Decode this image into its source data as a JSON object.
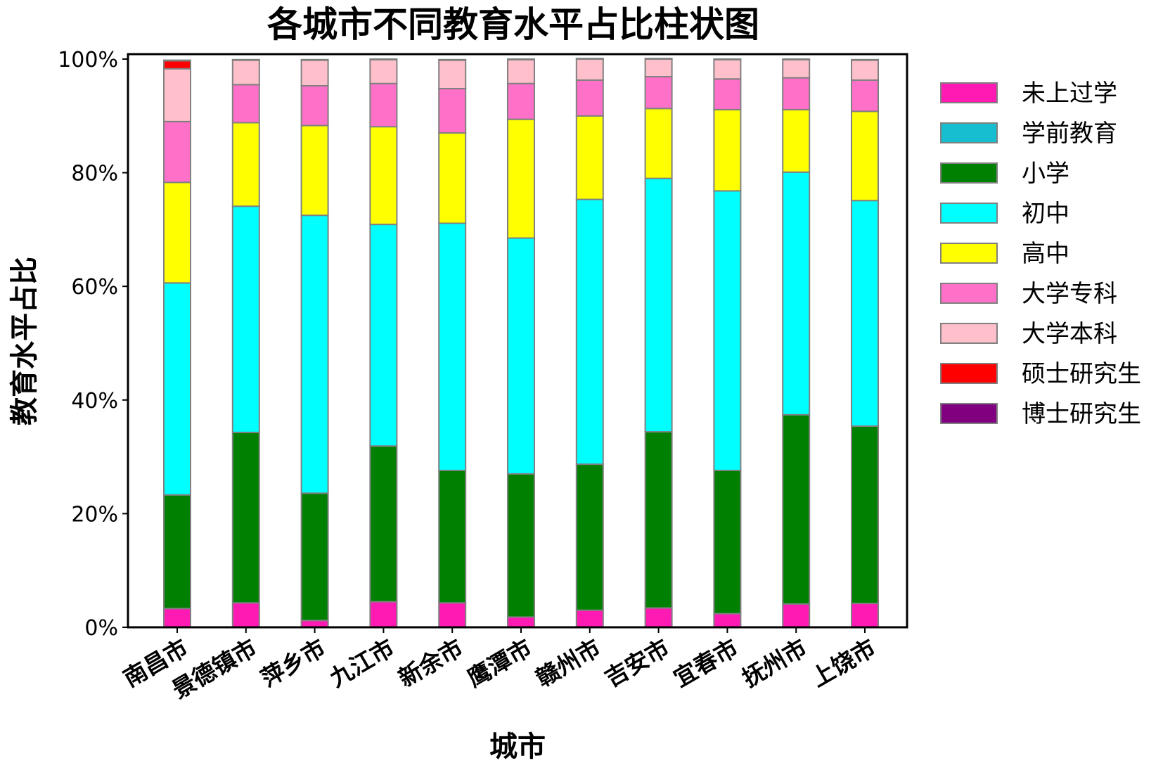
{
  "chart_data": {
    "type": "bar",
    "stacked": true,
    "title": "各城市不同教育水平占比柱状图",
    "xlabel": "城市",
    "ylabel": "教育水平占比",
    "ylim": [
      0,
      100
    ],
    "yticks": [
      "0%",
      "20%",
      "40%",
      "60%",
      "80%",
      "100%"
    ],
    "grid": false,
    "legend_position": "right",
    "categories": [
      "南昌市",
      "景德镇市",
      "萍乡市",
      "九江市",
      "新余市",
      "鹰潭市",
      "赣州市",
      "吉安市",
      "宜春市",
      "抚州市",
      "上饶市"
    ],
    "series": [
      {
        "name": "未上过学",
        "color": "#ff1ab3",
        "values": [
          3.3,
          4.3,
          1.2,
          4.5,
          4.3,
          1.8,
          3.0,
          3.4,
          2.4,
          4.1,
          4.2
        ]
      },
      {
        "name": "学前教育",
        "color": "#17becf",
        "values": [
          0,
          0,
          0,
          0,
          0,
          0,
          0,
          0,
          0,
          0,
          0
        ]
      },
      {
        "name": "小学",
        "color": "#008000",
        "values": [
          20.0,
          30.0,
          22.4,
          27.4,
          23.3,
          25.2,
          25.7,
          31.0,
          25.2,
          33.3,
          31.2
        ]
      },
      {
        "name": "初中",
        "color": "#00ffff",
        "values": [
          37.3,
          39.8,
          48.9,
          39.0,
          43.5,
          41.5,
          46.6,
          44.6,
          49.2,
          42.7,
          39.7
        ]
      },
      {
        "name": "高中",
        "color": "#ffff00",
        "values": [
          17.7,
          14.7,
          15.8,
          17.2,
          15.9,
          20.9,
          14.7,
          12.3,
          14.3,
          11.0,
          15.7
        ]
      },
      {
        "name": "大学专科",
        "color": "#ff70c8",
        "values": [
          10.7,
          6.7,
          7.0,
          7.6,
          7.8,
          6.3,
          6.3,
          5.6,
          5.4,
          5.6,
          5.5
        ]
      },
      {
        "name": "大学本科",
        "color": "#ffc0cb",
        "values": [
          9.3,
          4.3,
          4.5,
          4.2,
          5.0,
          4.2,
          3.7,
          3.1,
          3.4,
          3.2,
          3.5
        ]
      },
      {
        "name": "硕士研究生",
        "color": "#ff0000",
        "values": [
          1.4,
          0.1,
          0.1,
          0.1,
          0.1,
          0.1,
          0.1,
          0.1,
          0.1,
          0.1,
          0.1
        ]
      },
      {
        "name": "博士研究生",
        "color": "#800080",
        "values": [
          0.1,
          0,
          0,
          0,
          0,
          0,
          0,
          0,
          0,
          0,
          0
        ]
      }
    ]
  }
}
